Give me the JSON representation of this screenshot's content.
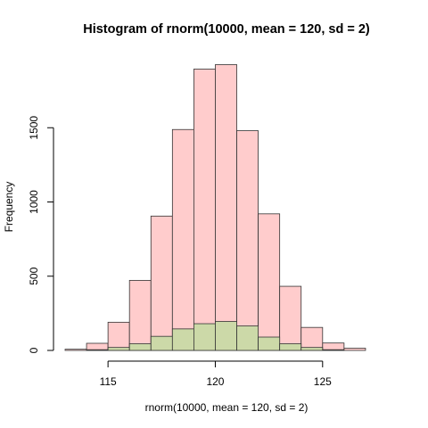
{
  "chart_data": {
    "type": "bar",
    "title": "Histogram of rnorm(10000, mean = 120, sd = 2)",
    "xlabel": "rnorm(10000, mean = 120, sd = 2)",
    "ylabel": "Frequency",
    "xlim": [
      113,
      128
    ],
    "ylim": [
      0,
      2000
    ],
    "x_ticks": [
      115,
      120,
      125
    ],
    "y_ticks": [
      0,
      500,
      1000,
      1500
    ],
    "bin_edges": [
      113,
      114,
      115,
      116,
      117,
      118,
      119,
      120,
      121,
      122,
      123,
      124,
      125,
      126,
      127
    ],
    "series": [
      {
        "values": [
          8,
          48,
          190,
          472,
          905,
          1488,
          1895,
          1925,
          1480,
          920,
          432,
          155,
          50,
          15
        ],
        "fill": "#ffcccc",
        "stroke": "#333333"
      },
      {
        "values": [
          0,
          5,
          20,
          45,
          95,
          145,
          180,
          195,
          165,
          90,
          45,
          20,
          5,
          0
        ],
        "fill": "#ccd9a8",
        "stroke": "#333333"
      }
    ],
    "grid": false,
    "legend": "none"
  }
}
